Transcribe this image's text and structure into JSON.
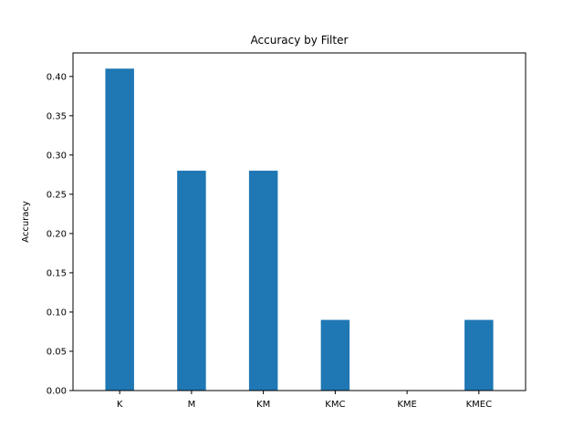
{
  "chart_data": {
    "type": "bar",
    "title": "Accuracy by Filter",
    "xlabel": "",
    "ylabel": "Accuracy",
    "categories": [
      "K",
      "M",
      "KM",
      "KMC",
      "KME",
      "KMEC"
    ],
    "values": [
      0.41,
      0.28,
      0.28,
      0.09,
      0.0,
      0.09
    ],
    "ylim": [
      0,
      0.43
    ],
    "yticks": [
      "0.00",
      "0.05",
      "0.10",
      "0.15",
      "0.20",
      "0.25",
      "0.30",
      "0.35",
      "0.40"
    ],
    "grid": false,
    "bar_color": "#1f77b4"
  }
}
